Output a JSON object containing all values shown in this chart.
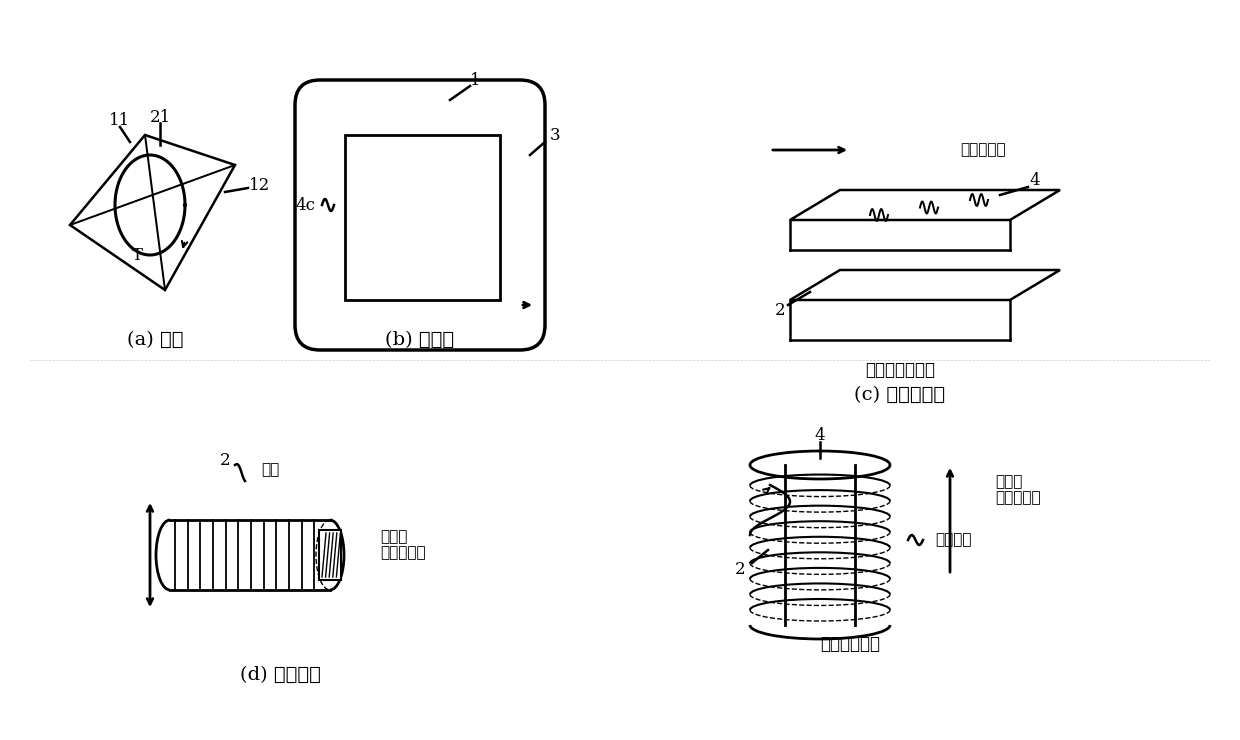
{
  "bg_color": "#ffffff",
  "line_color": "#000000",
  "label_a": "(a) 电势",
  "label_b": "(b) 电流环",
  "label_c": "(c) 磁化的铁片",
  "label_d": "(d) 永久磁铁",
  "text_11": "11",
  "text_21": "21",
  "text_12": "12",
  "text_T": "T",
  "text_1": "1",
  "text_3": "3",
  "text_4c": "4c",
  "text_4_top": "4",
  "text_2_spiral": "2",
  "text_magnetic_field_dir": "磁场的\n磁力线方向",
  "text_magnetizing_current": "磁化电流",
  "text_spiral_iron": "螺旋状的铁片",
  "text_field_line_dir": "磁力线方向",
  "text_4_plate": "4",
  "text_2_plate": "2",
  "text_plate_iron": "板状形状的铁片",
  "text_2_magnet": "2",
  "text_field_dir_magnet": "磁场的\n磁力线方向",
  "text_magnetize": "磁化"
}
